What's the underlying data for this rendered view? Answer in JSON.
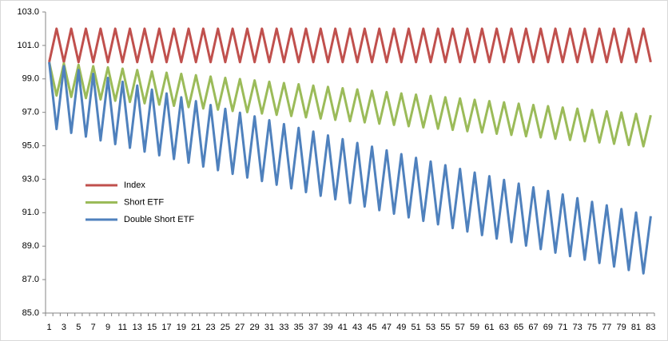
{
  "chart_data": {
    "type": "line",
    "categories": [
      1,
      null,
      3,
      null,
      5,
      null,
      7,
      null,
      9,
      null,
      11,
      null,
      13,
      null,
      15,
      null,
      17,
      null,
      19,
      null,
      21,
      null,
      23,
      null,
      25,
      null,
      27,
      null,
      29,
      null,
      31,
      null,
      33,
      null,
      35,
      null,
      37,
      null,
      39,
      null,
      41,
      null,
      43,
      null,
      45,
      null,
      47,
      null,
      49,
      null,
      51,
      null,
      53,
      null,
      55,
      null,
      57,
      null,
      59,
      null,
      61,
      null,
      63,
      null,
      65,
      null,
      67,
      null,
      69,
      null,
      71,
      null,
      73,
      null,
      75,
      null,
      77,
      null,
      79,
      null,
      81,
      null,
      83
    ],
    "series": [
      {
        "name": "Index",
        "color": "#c0504d",
        "values": [
          100,
          102,
          100,
          102,
          100,
          102,
          100,
          102,
          100,
          102,
          100,
          102,
          100,
          102,
          100,
          102,
          100,
          102,
          100,
          102,
          100,
          102,
          100,
          102,
          100,
          102,
          100,
          102,
          100,
          102,
          100,
          102,
          100,
          102,
          100,
          102,
          100,
          102,
          100,
          102,
          100,
          102,
          100,
          102,
          100,
          102,
          100,
          102,
          100,
          102,
          100,
          102,
          100,
          102,
          100,
          102,
          100,
          102,
          100,
          102,
          100,
          102,
          100,
          102,
          100,
          102,
          100,
          102,
          100,
          102,
          100,
          102,
          100,
          102,
          100,
          102,
          100,
          102,
          100,
          102,
          100,
          102,
          100
        ]
      },
      {
        "name": "Short ETF",
        "color": "#9bbb59",
        "values": [
          100,
          98,
          99.92,
          97.92,
          99.84,
          97.85,
          99.76,
          97.77,
          99.69,
          97.69,
          99.61,
          97.62,
          99.53,
          97.54,
          99.45,
          97.46,
          99.37,
          97.39,
          99.3,
          97.31,
          99.22,
          97.23,
          99.14,
          97.16,
          99.06,
          97.08,
          98.99,
          97.01,
          98.91,
          96.93,
          98.83,
          96.85,
          98.75,
          96.78,
          98.68,
          96.7,
          98.6,
          96.63,
          98.52,
          96.55,
          98.44,
          96.47,
          98.37,
          96.4,
          98.29,
          96.32,
          98.21,
          96.25,
          98.13,
          96.17,
          98.06,
          96.1,
          97.98,
          96.02,
          97.9,
          95.95,
          97.83,
          95.87,
          97.75,
          95.8,
          97.67,
          95.72,
          97.6,
          95.65,
          97.52,
          95.57,
          97.44,
          95.5,
          97.37,
          95.42,
          97.29,
          95.35,
          97.22,
          95.27,
          97.14,
          95.2,
          97.06,
          95.12,
          96.99,
          95.05,
          96.91,
          94.97,
          96.83
        ]
      },
      {
        "name": "Double Short ETF",
        "color": "#4f81bd",
        "values": [
          100,
          96,
          99.76,
          95.77,
          99.53,
          95.55,
          99.3,
          95.32,
          99.06,
          95.1,
          98.83,
          94.88,
          98.6,
          94.65,
          98.36,
          94.43,
          98.13,
          94.21,
          97.9,
          93.99,
          97.67,
          93.76,
          97.44,
          93.54,
          97.21,
          93.32,
          96.98,
          93.1,
          96.76,
          92.89,
          96.53,
          92.67,
          96.3,
          92.45,
          96.07,
          92.23,
          95.85,
          92.01,
          95.62,
          91.8,
          95.4,
          91.58,
          95.17,
          91.37,
          94.95,
          91.15,
          94.73,
          90.94,
          94.5,
          90.72,
          94.28,
          90.51,
          94.06,
          90.3,
          93.84,
          90.08,
          93.62,
          89.87,
          93.4,
          89.66,
          93.18,
          89.45,
          92.96,
          89.24,
          92.74,
          89.03,
          92.52,
          88.82,
          92.3,
          88.61,
          92.09,
          88.4,
          91.87,
          88.19,
          91.65,
          87.99,
          91.44,
          87.78,
          91.22,
          87.57,
          91.01,
          87.37,
          90.79
        ]
      }
    ],
    "ylim": [
      85,
      103
    ],
    "yticks": [
      {
        "value": 85,
        "label": "85.0"
      },
      {
        "value": 87,
        "label": "87.0"
      },
      {
        "value": 89,
        "label": "89.0"
      },
      {
        "value": 91,
        "label": "91.0"
      },
      {
        "value": 93,
        "label": "93.0"
      },
      {
        "value": 95,
        "label": "95.0"
      },
      {
        "value": 97,
        "label": "97.0"
      },
      {
        "value": 99,
        "label": "99.0"
      },
      {
        "value": 101,
        "label": "101.0"
      },
      {
        "value": 103,
        "label": "103.0"
      }
    ],
    "grid": false
  }
}
